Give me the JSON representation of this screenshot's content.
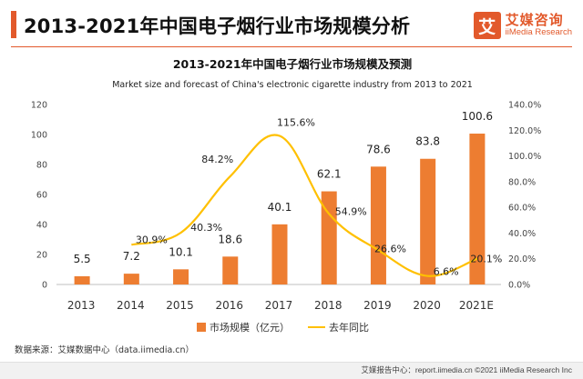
{
  "header": {
    "title": "2013-2021年中国电子烟行业市场规模分析",
    "brand_mark": "艾",
    "brand_cn": "艾媒咨询",
    "brand_en": "iiMedia Research"
  },
  "colors": {
    "accent": "#e2592b",
    "bar": "#ed7d31",
    "line": "#ffc000"
  },
  "chart_data": {
    "type": "bar",
    "title": "2013-2021年中国电子烟行业市场规模及预测",
    "subtitle": "Market size and forecast of China's electronic cigarette industry from 2013 to 2021",
    "categories": [
      "2013",
      "2014",
      "2015",
      "2016",
      "2017",
      "2018",
      "2019",
      "2020",
      "2021E"
    ],
    "series": [
      {
        "name": "市场规模（亿元）",
        "type": "bar",
        "axis": "left",
        "values": [
          5.5,
          7.2,
          10.1,
          18.6,
          40.1,
          62.1,
          78.6,
          83.8,
          100.6
        ],
        "labels": [
          "5.5",
          "7.2",
          "10.1",
          "18.6",
          "40.1",
          "62.1",
          "78.6",
          "83.8",
          "100.6"
        ]
      },
      {
        "name": "去年同比",
        "type": "line",
        "axis": "right",
        "values": [
          null,
          30.9,
          40.3,
          84.2,
          115.6,
          54.9,
          26.6,
          6.6,
          20.1
        ],
        "labels": [
          "",
          "30.9%",
          "40.3%",
          "84.2%",
          "115.6%",
          "54.9%",
          "26.6%",
          "6.6%",
          "20.1%"
        ]
      }
    ],
    "ylim_left": [
      0,
      120
    ],
    "yticks_left": [
      "0",
      "20",
      "40",
      "60",
      "80",
      "100",
      "120"
    ],
    "ylim_right": [
      0,
      140
    ],
    "yticks_right": [
      "0.0%",
      "20.0%",
      "40.0%",
      "60.0%",
      "80.0%",
      "100.0%",
      "120.0%",
      "140.0%"
    ],
    "legend_position": "bottom"
  },
  "source": "数据来源：艾媒数据中心（data.iimedia.cn）",
  "footer": "艾媒报告中心：report.iimedia.cn  ©2021  iiMedia Research  Inc"
}
